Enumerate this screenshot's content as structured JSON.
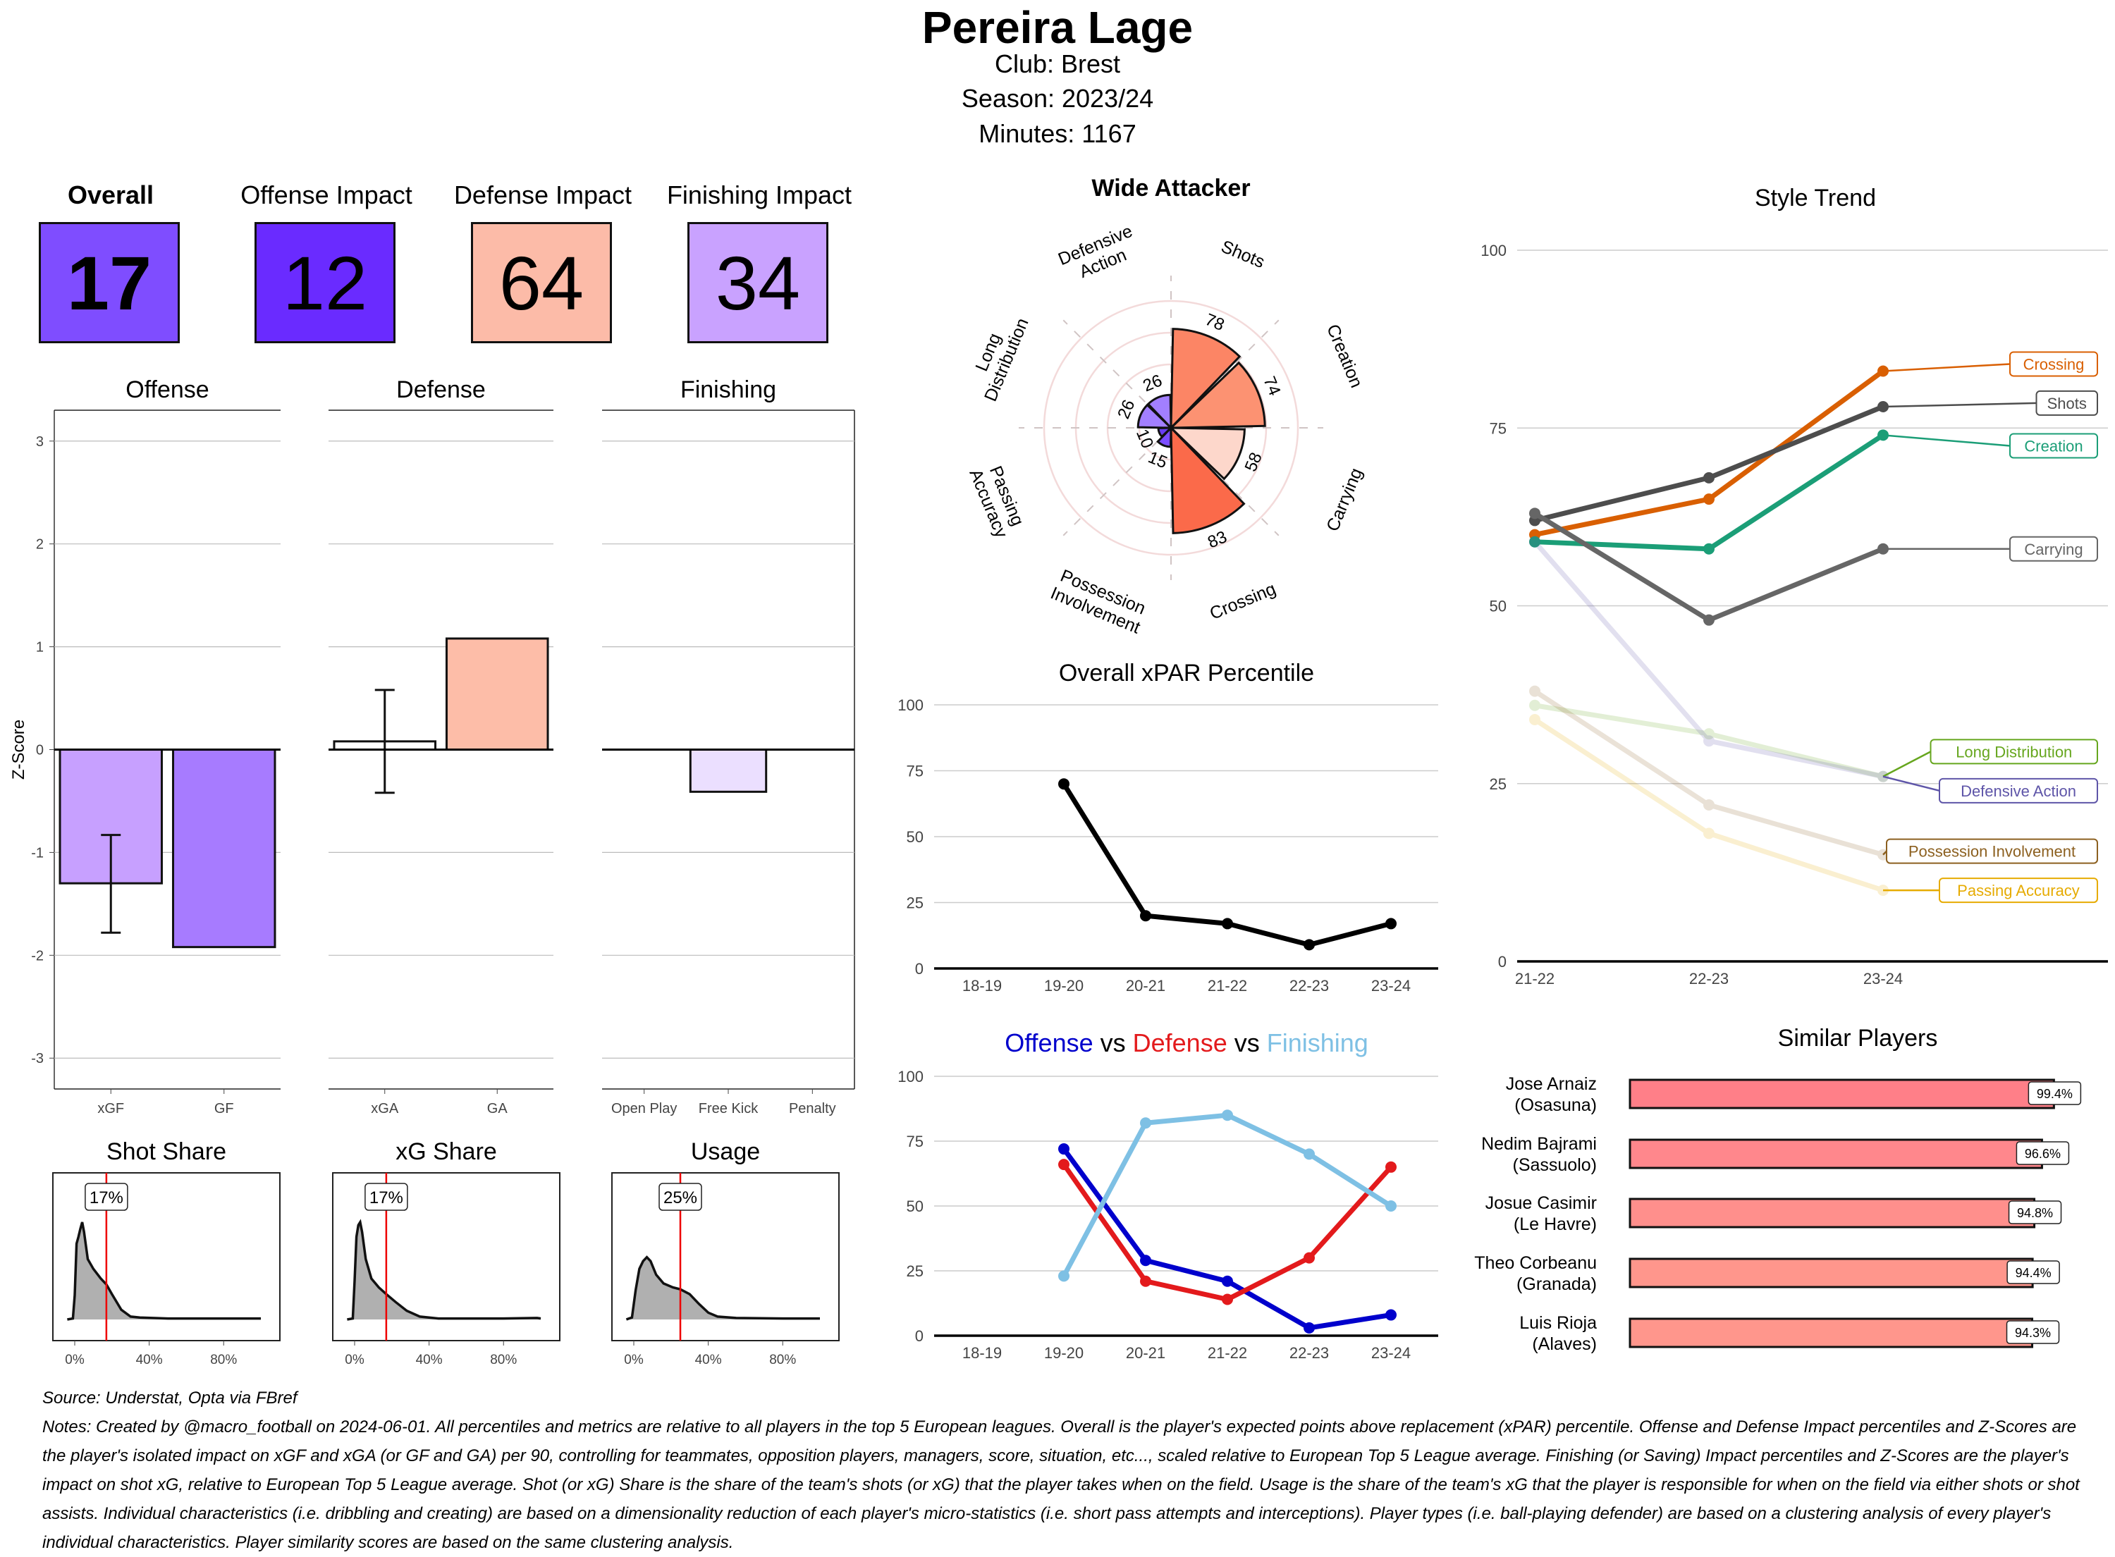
{
  "header": {
    "player_name": "Pereira Lage",
    "club_line": "Club:  Brest",
    "season_line": "Season:  2023/24",
    "minutes_line": "Minutes:  1167"
  },
  "kpis": [
    {
      "label": "Overall",
      "value": "17",
      "color": "#7f4dff",
      "bold": true
    },
    {
      "label": "Offense Impact",
      "value": "12",
      "color": "#6a2bff",
      "bold": false
    },
    {
      "label": "Defense Impact",
      "value": "64",
      "color": "#fcbba8",
      "bold": false
    },
    {
      "label": "Finishing Impact",
      "value": "34",
      "color": "#c9a2ff",
      "bold": false
    }
  ],
  "chart_data": [
    {
      "id": "zscore",
      "type": "bar",
      "ylabel": "Z-Score",
      "ylim": [
        -3.3,
        3.3
      ],
      "yticks": [
        -3,
        -2,
        -1,
        0,
        1,
        2,
        3
      ],
      "grid": true,
      "panels": [
        {
          "title": "Offense",
          "categories": [
            "xGF",
            "GF"
          ],
          "values": [
            -1.3,
            -1.92
          ],
          "colors": [
            "#c7a0ff",
            "#a77bff"
          ],
          "error_bars": [
            [
              -1.78,
              -0.83
            ],
            null
          ]
        },
        {
          "title": "Defense",
          "categories": [
            "xGA",
            "GA"
          ],
          "values": [
            0.08,
            1.08
          ],
          "colors": [
            "#ffffff",
            "#fdbda8"
          ],
          "error_bars": [
            [
              -0.42,
              0.58
            ],
            null
          ]
        },
        {
          "title": "Finishing",
          "categories": [
            "Open Play",
            "Free Kick",
            "Penalty"
          ],
          "values": [
            0,
            -0.41,
            0
          ],
          "colors": [
            "#ffffff",
            "#ebdfff",
            "#ffffff"
          ],
          "error_bars": [
            null,
            null,
            null
          ]
        }
      ]
    },
    {
      "id": "distributions",
      "type": "area",
      "xticks": [
        "0%",
        "40%",
        "80%"
      ],
      "panels": [
        {
          "title": "Shot Share",
          "marker_value": 17,
          "marker_label": "17%",
          "density_peak_x": 4
        },
        {
          "title": "xG Share",
          "marker_value": 17,
          "marker_label": "17%",
          "density_peak_x": 3
        },
        {
          "title": "Usage",
          "marker_value": 25,
          "marker_label": "25%",
          "density_peak_x": 7
        }
      ]
    },
    {
      "id": "radar",
      "type": "bar",
      "subtype": "polar",
      "title": "Wide Attacker",
      "categories": [
        "Shots",
        "Creation",
        "Carrying",
        "Crossing",
        "Possession Involvement",
        "Passing Accuracy",
        "Long Distribution",
        "Defensive Action"
      ],
      "labels": [
        "Shots",
        "Creation",
        "Carrying",
        "Crossing",
        "Possession\nInvolvement",
        "Passing\nAccuracy",
        "Long\nDistribution",
        "Defensive\nAction"
      ],
      "values": [
        78,
        74,
        58,
        83,
        15,
        10,
        26,
        26
      ],
      "colors": [
        "#fc8565",
        "#fc9272",
        "#fdd7cb",
        "#fb6a4a",
        "#7b4dff",
        "#6a3df0",
        "#a27fff",
        "#a27fff"
      ],
      "rlim": [
        0,
        100
      ]
    },
    {
      "id": "xpar",
      "type": "line",
      "title": "Overall xPAR Percentile",
      "categories": [
        "18-19",
        "19-20",
        "20-21",
        "21-22",
        "22-23",
        "23-24"
      ],
      "series": [
        {
          "name": "xPAR",
          "values": [
            null,
            70,
            20,
            17,
            9,
            17
          ],
          "color": "#000000"
        }
      ],
      "ylim": [
        0,
        100
      ],
      "yticks": [
        0,
        25,
        50,
        75,
        100
      ]
    },
    {
      "id": "ovd",
      "type": "line",
      "title_parts": [
        {
          "text": "Offense",
          "color": "#0000cc"
        },
        {
          "text": "vs",
          "color": "#000000"
        },
        {
          "text": "Defense",
          "color": "#e31a1c"
        },
        {
          "text": "vs",
          "color": "#000000"
        },
        {
          "text": "Finishing",
          "color": "#7ec0e4"
        }
      ],
      "categories": [
        "18-19",
        "19-20",
        "20-21",
        "21-22",
        "22-23",
        "23-24"
      ],
      "series": [
        {
          "name": "Offense",
          "values": [
            null,
            72,
            29,
            21,
            3,
            8
          ],
          "color": "#0000cc"
        },
        {
          "name": "Defense",
          "values": [
            null,
            66,
            21,
            14,
            30,
            65
          ],
          "color": "#e31a1c"
        },
        {
          "name": "Finishing",
          "values": [
            null,
            23,
            82,
            85,
            70,
            50
          ],
          "color": "#7ec0e4"
        }
      ],
      "ylim": [
        0,
        100
      ],
      "yticks": [
        0,
        25,
        50,
        75,
        100
      ]
    },
    {
      "id": "style",
      "type": "line",
      "title": "Style Trend",
      "categories": [
        "21-22",
        "22-23",
        "23-24"
      ],
      "series": [
        {
          "name": "Crossing",
          "values": [
            60,
            65,
            83
          ],
          "color": "#d95f02",
          "faded": false
        },
        {
          "name": "Shots",
          "values": [
            62,
            68,
            78
          ],
          "color": "#4d4d4d",
          "faded": false
        },
        {
          "name": "Creation",
          "values": [
            59,
            58,
            74
          ],
          "color": "#1b9e77",
          "faded": false
        },
        {
          "name": "Carrying",
          "values": [
            63,
            48,
            58
          ],
          "color": "#666666",
          "faded": false
        },
        {
          "name": "Long Distribution",
          "values": [
            36,
            32,
            26
          ],
          "color": "#66a61e",
          "faded": true
        },
        {
          "name": "Defensive Action",
          "values": [
            59,
            31,
            26
          ],
          "color": "#5e55a8",
          "faded": true
        },
        {
          "name": "Possession Involvement",
          "values": [
            38,
            22,
            15
          ],
          "color": "#8c6020",
          "faded": true
        },
        {
          "name": "Passing Accuracy",
          "values": [
            34,
            18,
            10
          ],
          "color": "#e6ab02",
          "faded": true
        }
      ],
      "label_values": [
        84,
        78.5,
        72.5,
        58,
        29.5,
        24,
        15.5,
        10
      ],
      "ylim": [
        0,
        100
      ],
      "yticks": [
        0,
        25,
        50,
        75,
        100
      ]
    },
    {
      "id": "similar",
      "type": "bar",
      "orientation": "horizontal",
      "title": "Similar Players",
      "categories": [
        "Jose Arnaiz\n(Osasuna)",
        "Nedim Bajrami\n(Sassuolo)",
        "Josue Casimir\n(Le Havre)",
        "Theo Corbeanu\n(Granada)",
        "Luis Rioja\n(Alaves)"
      ],
      "values": [
        99.4,
        96.6,
        94.8,
        94.4,
        94.3
      ],
      "value_labels": [
        "99.4%",
        "96.6%",
        "94.8%",
        "94.4%",
        "94.3%"
      ],
      "colors": [
        "#ff7f88",
        "#ff878c",
        "#ff8f8c",
        "#ff968c",
        "#ff968c"
      ],
      "xlim": [
        0,
        100
      ]
    }
  ],
  "footer": {
    "source": "Source: Understat, Opta via FBref",
    "notes": "Notes: Created by @macro_football on 2024-06-01. All percentiles and metrics are relative to all players in the top 5 European leagues. Overall is the player's expected points above replacement (xPAR) percentile. Offense and Defense Impact percentiles and Z-Scores are the player's isolated impact on xGF and xGA (or GF and GA) per 90, controlling for teammates, opposition players, managers, score, situation, etc..., scaled relative to European Top 5 League average. Finishing (or Saving) Impact percentiles and Z-Scores are the player's impact on shot xG, relative to European Top 5 League average. Shot (or xG) Share is the share of the team's shots (or xG) that the player takes when on the field. Usage is the share of the team's xG that the player is responsible for when on the field via either shots or shot assists. Individual characteristics (i.e. dribbling and creating) are based on a dimensionality reduction of each player's micro-statistics (i.e. short pass attempts and interceptions). Player types (i.e. ball-playing defender) are based on a clustering analysis of every player's individual characteristics. Player similarity scores are based on the same clustering analysis."
  }
}
